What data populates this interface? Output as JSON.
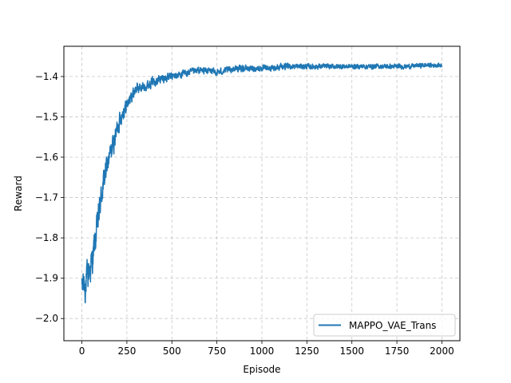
{
  "chart_data": {
    "type": "line",
    "title": "",
    "xlabel": "Episode",
    "ylabel": "Reward",
    "xlim": [
      -100,
      2100
    ],
    "ylim": [
      -2.055,
      -1.325
    ],
    "xticks": [
      0,
      250,
      500,
      750,
      1000,
      1250,
      1500,
      1750,
      2000
    ],
    "xtick_labels": [
      "0",
      "250",
      "500",
      "750",
      "1000",
      "1250",
      "1500",
      "1750",
      "2000"
    ],
    "yticks": [
      -2.0,
      -1.9,
      -1.8,
      -1.7,
      -1.6,
      -1.5,
      -1.4
    ],
    "ytick_labels": [
      "−2.0",
      "−1.9",
      "−1.8",
      "−1.7",
      "−1.6",
      "−1.5",
      "−1.4"
    ],
    "grid": true,
    "grid_style": "dashed",
    "legend_position": "lower-right",
    "colors": {
      "series": "#1f77b4",
      "grid": "#b0b0b0",
      "axes": "#000000"
    },
    "series": [
      {
        "name": "MAPPO_VAE_Trans",
        "color": "#1f77b4",
        "trend": {
          "x": [
            0,
            10,
            20,
            30,
            40,
            50,
            60,
            70,
            80,
            90,
            100,
            110,
            125,
            140,
            160,
            180,
            200,
            225,
            250,
            275,
            300,
            350,
            400,
            450,
            500,
            550,
            600,
            650,
            700,
            750,
            800,
            850,
            900,
            950,
            1000,
            1050,
            1100,
            1150,
            1200,
            1250,
            1300,
            1400,
            1500,
            1600,
            1700,
            1800,
            1900,
            2000
          ],
          "y": [
            -1.93,
            -1.91,
            -1.92,
            -1.9,
            -1.88,
            -1.87,
            -1.85,
            -1.82,
            -1.79,
            -1.76,
            -1.72,
            -1.69,
            -1.65,
            -1.62,
            -1.59,
            -1.56,
            -1.52,
            -1.49,
            -1.47,
            -1.45,
            -1.43,
            -1.425,
            -1.41,
            -1.405,
            -1.4,
            -1.395,
            -1.39,
            -1.385,
            -1.385,
            -1.39,
            -1.385,
            -1.38,
            -1.38,
            -1.38,
            -1.38,
            -1.38,
            -1.375,
            -1.375,
            -1.375,
            -1.375,
            -1.375,
            -1.375,
            -1.375,
            -1.375,
            -1.375,
            -1.375,
            -1.372,
            -1.372
          ]
        },
        "noise": {
          "x": [
            0,
            50,
            100,
            150,
            200,
            250,
            300,
            400,
            500,
            600,
            800,
            1000,
            1200,
            1500,
            2000
          ],
          "amplitude": [
            0.06,
            0.06,
            0.05,
            0.04,
            0.035,
            0.025,
            0.02,
            0.017,
            0.015,
            0.013,
            0.012,
            0.011,
            0.01,
            0.009,
            0.008
          ]
        }
      }
    ]
  }
}
